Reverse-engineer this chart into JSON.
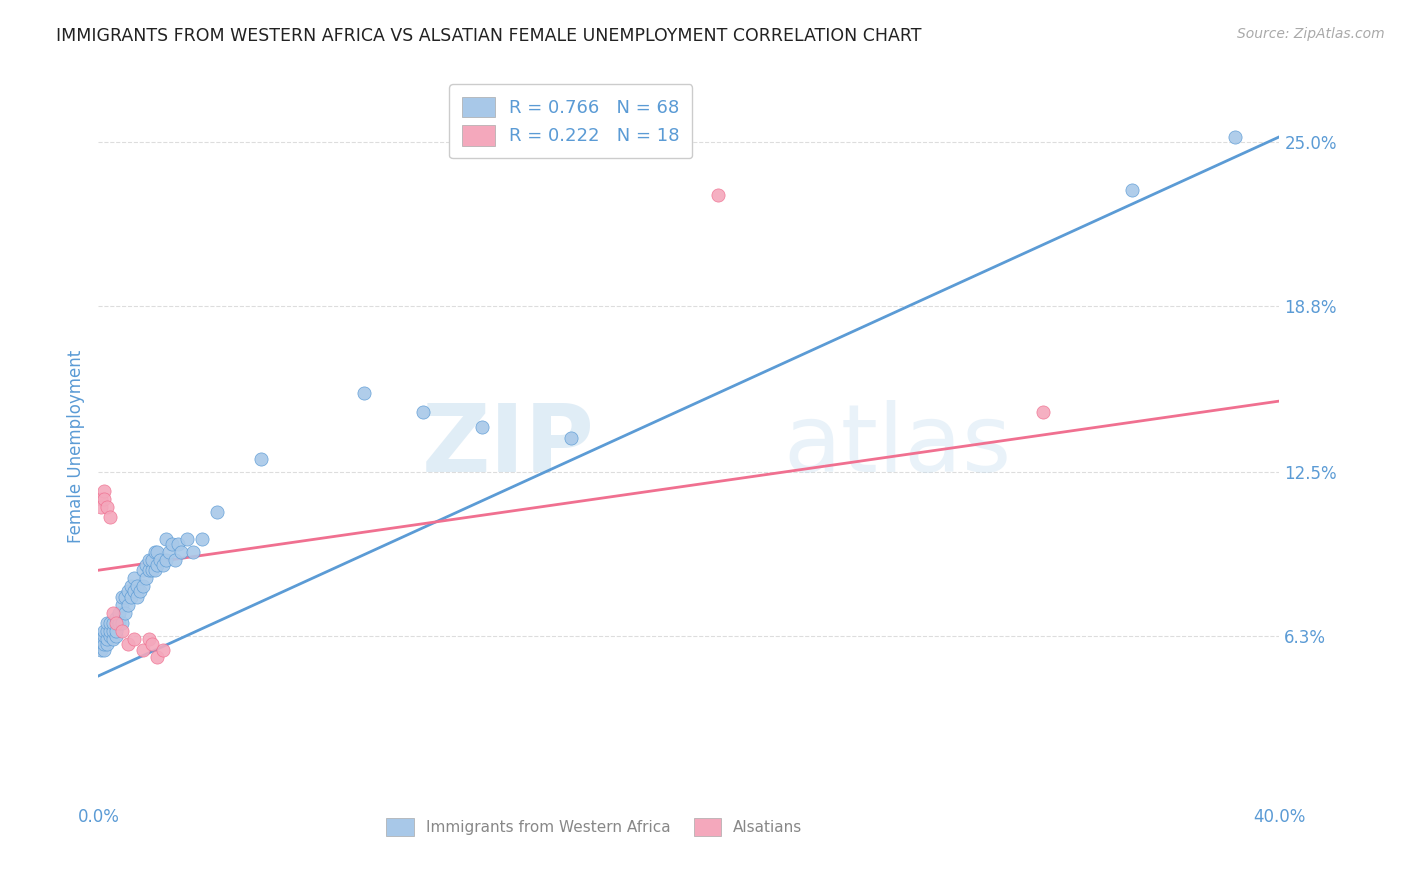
{
  "title": "IMMIGRANTS FROM WESTERN AFRICA VS ALSATIAN FEMALE UNEMPLOYMENT CORRELATION CHART",
  "source": "Source: ZipAtlas.com",
  "ylabel": "Female Unemployment",
  "xlim": [
    0.0,
    0.4
  ],
  "ylim": [
    0.0,
    0.27
  ],
  "yticks": [
    0.063,
    0.125,
    0.188,
    0.25
  ],
  "ytick_labels": [
    "6.3%",
    "12.5%",
    "18.8%",
    "25.0%"
  ],
  "xticks": [
    0.0,
    0.08,
    0.16,
    0.24,
    0.32,
    0.4
  ],
  "xtick_labels": [
    "0.0%",
    "",
    "",
    "",
    "",
    "40.0%"
  ],
  "legend_entries": [
    {
      "label": "R = 0.766   N = 68",
      "color": "#a8c4e0"
    },
    {
      "label": "R = 0.222   N = 18",
      "color": "#f4a8bc"
    }
  ],
  "blue_color": "#5b9bd5",
  "pink_color": "#f07090",
  "blue_dot_color": "#a8c8e8",
  "pink_dot_color": "#f4a8bc",
  "watermark_zip": "ZIP",
  "watermark_atlas": "atlas",
  "blue_scatter": [
    [
      0.001,
      0.058
    ],
    [
      0.001,
      0.06
    ],
    [
      0.001,
      0.062
    ],
    [
      0.002,
      0.058
    ],
    [
      0.002,
      0.06
    ],
    [
      0.002,
      0.063
    ],
    [
      0.002,
      0.065
    ],
    [
      0.003,
      0.06
    ],
    [
      0.003,
      0.062
    ],
    [
      0.003,
      0.065
    ],
    [
      0.003,
      0.068
    ],
    [
      0.004,
      0.063
    ],
    [
      0.004,
      0.065
    ],
    [
      0.004,
      0.068
    ],
    [
      0.005,
      0.062
    ],
    [
      0.005,
      0.065
    ],
    [
      0.005,
      0.068
    ],
    [
      0.006,
      0.063
    ],
    [
      0.006,
      0.065
    ],
    [
      0.006,
      0.07
    ],
    [
      0.007,
      0.068
    ],
    [
      0.007,
      0.072
    ],
    [
      0.008,
      0.068
    ],
    [
      0.008,
      0.075
    ],
    [
      0.008,
      0.078
    ],
    [
      0.009,
      0.072
    ],
    [
      0.009,
      0.078
    ],
    [
      0.01,
      0.075
    ],
    [
      0.01,
      0.08
    ],
    [
      0.011,
      0.078
    ],
    [
      0.011,
      0.082
    ],
    [
      0.012,
      0.08
    ],
    [
      0.012,
      0.085
    ],
    [
      0.013,
      0.078
    ],
    [
      0.013,
      0.082
    ],
    [
      0.014,
      0.08
    ],
    [
      0.015,
      0.082
    ],
    [
      0.015,
      0.088
    ],
    [
      0.016,
      0.085
    ],
    [
      0.016,
      0.09
    ],
    [
      0.017,
      0.088
    ],
    [
      0.017,
      0.092
    ],
    [
      0.018,
      0.088
    ],
    [
      0.018,
      0.092
    ],
    [
      0.019,
      0.088
    ],
    [
      0.019,
      0.095
    ],
    [
      0.02,
      0.09
    ],
    [
      0.02,
      0.095
    ],
    [
      0.021,
      0.092
    ],
    [
      0.022,
      0.09
    ],
    [
      0.023,
      0.092
    ],
    [
      0.023,
      0.1
    ],
    [
      0.024,
      0.095
    ],
    [
      0.025,
      0.098
    ],
    [
      0.026,
      0.092
    ],
    [
      0.027,
      0.098
    ],
    [
      0.028,
      0.095
    ],
    [
      0.03,
      0.1
    ],
    [
      0.032,
      0.095
    ],
    [
      0.035,
      0.1
    ],
    [
      0.04,
      0.11
    ],
    [
      0.055,
      0.13
    ],
    [
      0.09,
      0.155
    ],
    [
      0.11,
      0.148
    ],
    [
      0.13,
      0.142
    ],
    [
      0.16,
      0.138
    ],
    [
      0.35,
      0.232
    ],
    [
      0.385,
      0.252
    ]
  ],
  "pink_scatter": [
    [
      0.001,
      0.115
    ],
    [
      0.001,
      0.112
    ],
    [
      0.002,
      0.118
    ],
    [
      0.002,
      0.115
    ],
    [
      0.003,
      0.112
    ],
    [
      0.004,
      0.108
    ],
    [
      0.005,
      0.072
    ],
    [
      0.006,
      0.068
    ],
    [
      0.008,
      0.065
    ],
    [
      0.01,
      0.06
    ],
    [
      0.012,
      0.062
    ],
    [
      0.015,
      0.058
    ],
    [
      0.017,
      0.062
    ],
    [
      0.018,
      0.06
    ],
    [
      0.02,
      0.055
    ],
    [
      0.022,
      0.058
    ],
    [
      0.32,
      0.148
    ],
    [
      0.21,
      0.23
    ]
  ],
  "blue_line_x": [
    0.0,
    0.4
  ],
  "blue_line_y": [
    0.048,
    0.252
  ],
  "pink_line_x": [
    0.0,
    0.4
  ],
  "pink_line_y": [
    0.088,
    0.152
  ],
  "background_color": "#ffffff",
  "grid_color": "#dddddd",
  "title_color": "#222222",
  "axis_label_color": "#5b9bd5",
  "tick_color": "#5b9bd5"
}
